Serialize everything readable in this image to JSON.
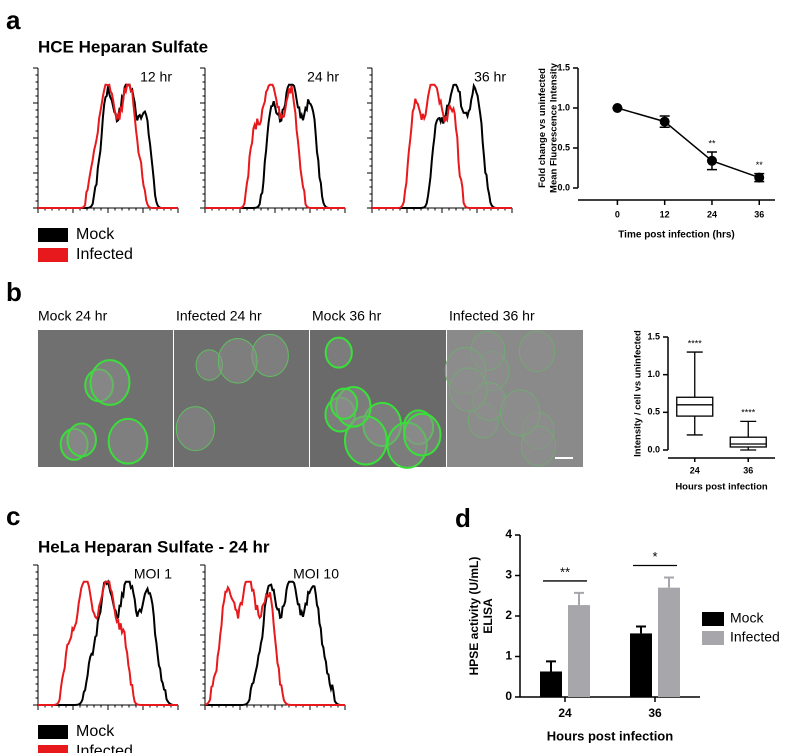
{
  "panel_labels": [
    "a",
    "b",
    "c",
    "d"
  ],
  "panel_a": {
    "title": "HCE Heparan Sulfate",
    "histogram_labels": [
      "12 hr",
      "24 hr",
      "36 hr"
    ],
    "legend": [
      "Mock",
      "Infected"
    ],
    "legend_colors": [
      "#000000",
      "#e8191c"
    ]
  },
  "panel_b": {
    "image_labels": [
      "Mock 24 hr",
      "Infected 24 hr",
      "Mock 36 hr",
      "Infected 36 hr"
    ]
  },
  "panel_c": {
    "title": "HeLa Heparan Sulfate - 24 hr",
    "histogram_labels": [
      "MOI 1",
      "MOI 10"
    ],
    "legend": [
      "Mock",
      "Infected"
    ],
    "legend_colors": [
      "#000000",
      "#e8191c"
    ]
  },
  "chart_data": [
    {
      "type": "line",
      "y_label": [
        "Fold change vs uninfected",
        "Mean Fluorescence Intensity"
      ],
      "x_label": "Time post infection (hrs)",
      "x": [
        0,
        12,
        24,
        36
      ],
      "values": [
        1.0,
        0.83,
        0.34,
        0.13
      ],
      "errors": [
        0,
        0.07,
        0.11,
        0.05
      ],
      "color": "#000000",
      "annotations": [
        {
          "x": 24,
          "text": "**"
        },
        {
          "x": 36,
          "text": "**"
        }
      ],
      "xlim": [
        -10,
        40
      ],
      "xticks": [
        0,
        12,
        24,
        36
      ],
      "ylim": [
        0,
        1.5
      ],
      "yticks": [
        {
          "value": 0,
          "label": "0.0"
        },
        {
          "value": 0.5,
          "label": "0.5"
        },
        {
          "value": 1,
          "label": "1.0"
        },
        {
          "value": 1.5,
          "label": "1.5"
        }
      ]
    },
    {
      "type": "box",
      "y_label": "Intensity / cell vs uninfected",
      "x_label": "Hours post infection",
      "categories": [
        "24",
        "36"
      ],
      "boxes": [
        {
          "min": 0.2,
          "q1": 0.45,
          "median": 0.6,
          "q3": 0.7,
          "max": 1.3
        },
        {
          "min": 0.0,
          "q1": 0.04,
          "median": 0.08,
          "q3": 0.17,
          "max": 0.38
        }
      ],
      "annotations": [
        "****",
        "****"
      ],
      "ylim": [
        0,
        1.5
      ],
      "yticks": [
        {
          "value": 0,
          "label": "0.0"
        },
        {
          "value": 0.5,
          "label": "0.5"
        },
        {
          "value": 1,
          "label": "1.0"
        },
        {
          "value": 1.5,
          "label": "1.5"
        }
      ]
    },
    {
      "type": "bar",
      "y_label": [
        "HPSE activity (U/mL)",
        "ELISA"
      ],
      "x_label": "Hours post infection",
      "categories": [
        "24",
        "36"
      ],
      "series": [
        {
          "name": "Mock",
          "color": "#000000",
          "values": [
            0.63,
            1.57
          ],
          "errors": [
            0.25,
            0.17
          ]
        },
        {
          "name": "Infected",
          "color": "#a7a7ab",
          "values": [
            2.27,
            2.7
          ],
          "errors": [
            0.3,
            0.25
          ]
        }
      ],
      "annotations": [
        "**",
        "*"
      ],
      "ylim": [
        0,
        4
      ],
      "yticks": [
        0,
        1,
        2,
        3,
        4
      ]
    }
  ]
}
